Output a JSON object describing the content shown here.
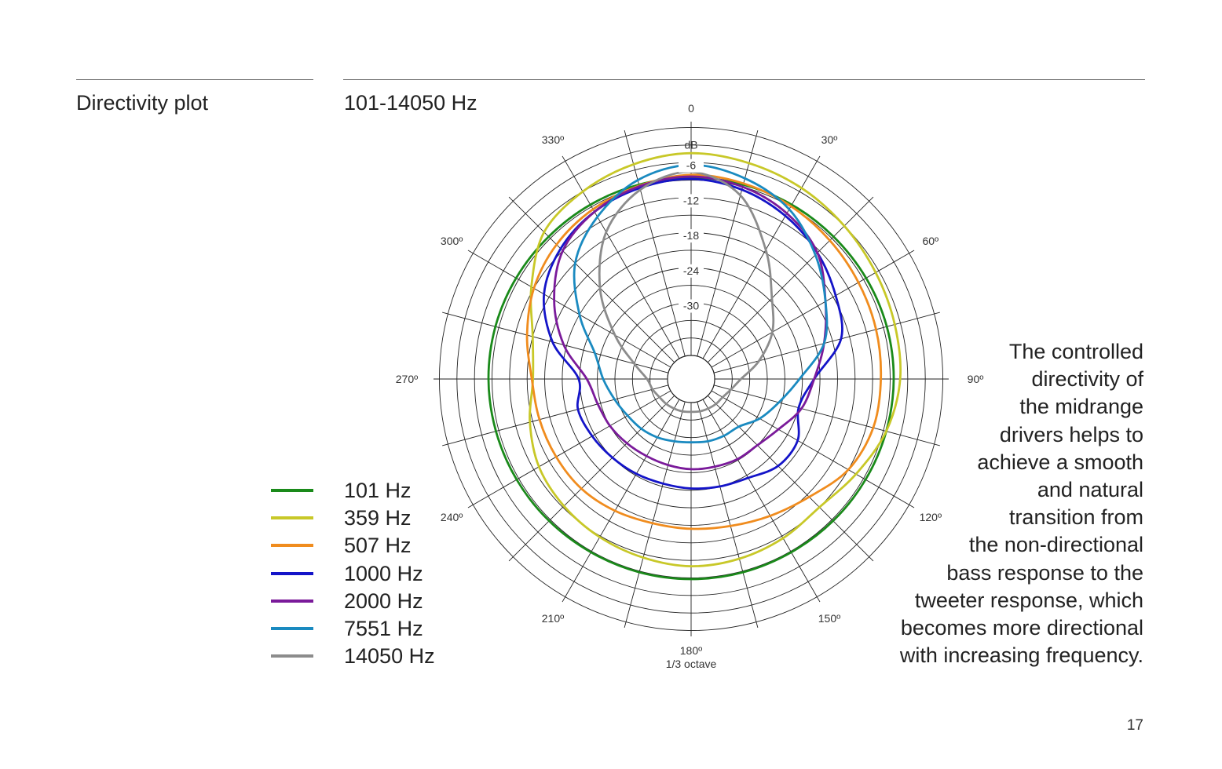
{
  "header": {
    "section_title": "Directivity plot",
    "range_title": "101-14050 Hz"
  },
  "description_lines": [
    "The controlled",
    "directivity of",
    "the midrange",
    "drivers helps to",
    "achieve a smooth",
    "and natural",
    "transition from",
    "the non-directional",
    "bass response to the",
    "tweeter response, which",
    "becomes more directional",
    "with increasing frequency."
  ],
  "page_number": "17",
  "chart_data": {
    "type": "polar-line",
    "unit_label": "dB",
    "resolution_label": "1/3 octave",
    "radial_ticks": [
      {
        "value": 0,
        "label": "0"
      },
      {
        "value": -6,
        "label": "-6"
      },
      {
        "value": -12,
        "label": "-12"
      },
      {
        "value": -18,
        "label": "-18"
      },
      {
        "value": -24,
        "label": "-24"
      },
      {
        "value": -30,
        "label": "-30"
      }
    ],
    "r_range": [
      -40,
      0
    ],
    "angle_ticks": [
      {
        "angle": 0,
        "label": ""
      },
      {
        "angle": 30,
        "label": "30º"
      },
      {
        "angle": 60,
        "label": "60º"
      },
      {
        "angle": 90,
        "label": "90º"
      },
      {
        "angle": 120,
        "label": "120º"
      },
      {
        "angle": 150,
        "label": "150º"
      },
      {
        "angle": 180,
        "label": "180º"
      },
      {
        "angle": 210,
        "label": "210º"
      },
      {
        "angle": 240,
        "label": "240º"
      },
      {
        "angle": 270,
        "label": "270º"
      },
      {
        "angle": 300,
        "label": "300º"
      },
      {
        "angle": 330,
        "label": "330º"
      }
    ],
    "angles": [
      0,
      15,
      30,
      45,
      60,
      75,
      90,
      105,
      120,
      135,
      150,
      165,
      180,
      195,
      210,
      225,
      240,
      255,
      270,
      285,
      300,
      315,
      330,
      345
    ],
    "series": [
      {
        "name": "101 Hz",
        "color": "#1a8a1a",
        "values": [
          -9.6,
          -9.6,
          -9.6,
          -9.6,
          -9.5,
          -9.4,
          -9.4,
          -9.5,
          -9.6,
          -9.7,
          -9.8,
          -9.8,
          -9.8,
          -9.8,
          -9.8,
          -9.7,
          -9.6,
          -9.5,
          -9.4,
          -9.4,
          -9.5,
          -9.6,
          -9.6,
          -9.6
        ]
      },
      {
        "name": "359 Hz",
        "color": "#c8c828",
        "values": [
          -5.4,
          -5.8,
          -6.3,
          -7.0,
          -7.6,
          -8.0,
          -8.3,
          -9.5,
          -11.5,
          -13.0,
          -12.6,
          -12.2,
          -12.0,
          -12.4,
          -12.8,
          -13.3,
          -14.0,
          -15.5,
          -17.0,
          -16.0,
          -12.5,
          -8.5,
          -7.0,
          -6.0
        ]
      },
      {
        "name": "507 Hz",
        "color": "#f08c1e",
        "values": [
          -9.1,
          -9.4,
          -9.9,
          -10.5,
          -11.0,
          -11.3,
          -11.6,
          -11.8,
          -13.0,
          -15.5,
          -17.0,
          -18.0,
          -18.4,
          -18.5,
          -18.0,
          -17.5,
          -17.4,
          -17.2,
          -16.8,
          -15.0,
          -13.0,
          -11.5,
          -10.5,
          -9.8
        ]
      },
      {
        "name": "1000 Hz",
        "color": "#1414c8",
        "values": [
          -9.8,
          -10.5,
          -11.8,
          -13.5,
          -15.5,
          -17.5,
          -23.0,
          -25.0,
          -23.0,
          -23.0,
          -24.5,
          -25.0,
          -25.3,
          -25.5,
          -25.3,
          -25.0,
          -24.5,
          -24.0,
          -24.8,
          -19.5,
          -15.0,
          -12.5,
          -11.0,
          -10.2
        ]
      },
      {
        "name": "2000 Hz",
        "color": "#7a1a9a",
        "values": [
          -9.4,
          -10.0,
          -11.3,
          -13.5,
          -17.5,
          -20.5,
          -23.0,
          -24.5,
          -26.8,
          -28.0,
          -28.2,
          -28.5,
          -28.6,
          -28.8,
          -28.8,
          -28.5,
          -28.0,
          -27.5,
          -26.2,
          -21.5,
          -17.0,
          -13.0,
          -11.0,
          -9.9
        ]
      },
      {
        "name": "7551 Hz",
        "color": "#1a8ac0",
        "values": [
          -7.4,
          -8.5,
          -10.5,
          -14.0,
          -17.5,
          -20.5,
          -25.5,
          -28.5,
          -30.5,
          -32.5,
          -32.8,
          -33.0,
          -33.2,
          -33.0,
          -32.5,
          -32.0,
          -31.5,
          -30.5,
          -29.0,
          -27.0,
          -22.0,
          -16.0,
          -12.0,
          -8.8
        ]
      },
      {
        "name": "14050 Hz",
        "color": "#8c8c8c",
        "values": [
          -8.6,
          -11.5,
          -18.5,
          -24.5,
          -28.0,
          -32.0,
          -35.5,
          -37.0,
          -37.8,
          -38.0,
          -38.2,
          -38.3,
          -38.4,
          -38.3,
          -38.2,
          -38.0,
          -37.8,
          -37.2,
          -36.5,
          -34.0,
          -29.0,
          -22.0,
          -15.0,
          -10.5
        ]
      }
    ]
  }
}
